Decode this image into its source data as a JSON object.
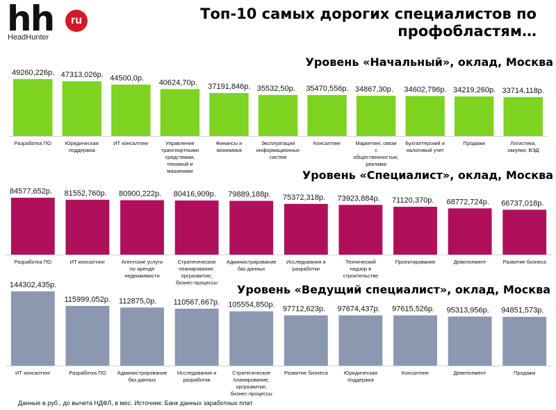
{
  "header": {
    "logo_text": "hh",
    "logo_badge": "ru",
    "logo_brand": "HeadHunter",
    "title": "Топ-10 самых дорогих специалистов по профобластям…"
  },
  "footnote": "Данные в руб., до вычета НДФЛ, в мес. Источник: Банк данных заработных плат",
  "colors": {
    "level1": "#7ed321",
    "level2": "#b0105b",
    "level3": "#8c97b0"
  },
  "chart_data": [
    {
      "type": "bar",
      "title": "Уровень «Начальный», оклад, Москва",
      "categories": [
        "Разработка ПО",
        "Юридическая поддержка",
        "ИТ консалтинг",
        "Управление транспортными средствами, техникой и машинами",
        "Финансы и экономика",
        "Эксплуатация информационных систем",
        "Консалтинг",
        "Маркетинг, связи с общественностью, реклама",
        "Бухгалтерский и налоговый учет",
        "Продажи",
        "Логистика, закупки, ВЭД"
      ],
      "values": [
        49260.226,
        47313.026,
        44500.0,
        40624.7,
        37191.846,
        35532.5,
        35470.556,
        34867.3,
        34602.796,
        34219.26,
        33714.118
      ],
      "labels": [
        "49260,226р.",
        "47313,026р.",
        "44500,0р.",
        "40624,70р.",
        "37191,846р.",
        "35532,50р.",
        "35470,556р.",
        "34867,30р.",
        "34602,796р.",
        "34219,260р.",
        "33714,118р."
      ],
      "color": "#7ed321"
    },
    {
      "type": "bar",
      "title": "Уровень «Специалист», оклад, Москва",
      "categories": [
        "Разработка ПО",
        "ИТ консалтинг",
        "Агентские услуги по аренде недвижимости",
        "Стратегическое планирование, оргразвитие, бизнес-процессы",
        "Администрирование баз данных",
        "Исследования и разработки",
        "Технический надзор в строительстве",
        "Проектирование",
        "Девелопмент",
        "Развитие бизнеса"
      ],
      "values": [
        84577.652,
        81552.76,
        80900.222,
        80416.909,
        79889.188,
        75372.318,
        73923.884,
        71120.37,
        68772.724,
        66737.018
      ],
      "labels": [
        "84577,652р.",
        "81552,760р.",
        "80900,222р.",
        "80416,909р.",
        "79889,188р.",
        "75372,318р.",
        "73923,884р.",
        "71120,370р.",
        "68772,724р.",
        "66737,018р."
      ],
      "color": "#b0105b"
    },
    {
      "type": "bar",
      "title": "Уровень «Ведущий специалист», оклад, Москва",
      "categories": [
        "ИТ консалтинг",
        "Разработка ПО",
        "Администрирование баз данных",
        "Исследования и разработки",
        "Стратегическое планирование, оргразвитие, бизнес-процессы",
        "Развитие бизнеса",
        "Юридическая поддержка",
        "Консалтинг",
        "Девелопмент",
        "Продажи"
      ],
      "values": [
        144302.435,
        115999.052,
        112875.0,
        110567.667,
        105554.85,
        97712.623,
        97674.437,
        97615.526,
        95313.956,
        94851.573
      ],
      "labels": [
        "144302,435р.",
        "115999,052р.",
        "112875,0р.",
        "110567,667р.",
        "105554,850р.",
        "97712,623р.",
        "97674,437р.",
        "97615,526р.",
        "95313,956р.",
        "94851,573р."
      ],
      "color": "#8c97b0"
    }
  ]
}
